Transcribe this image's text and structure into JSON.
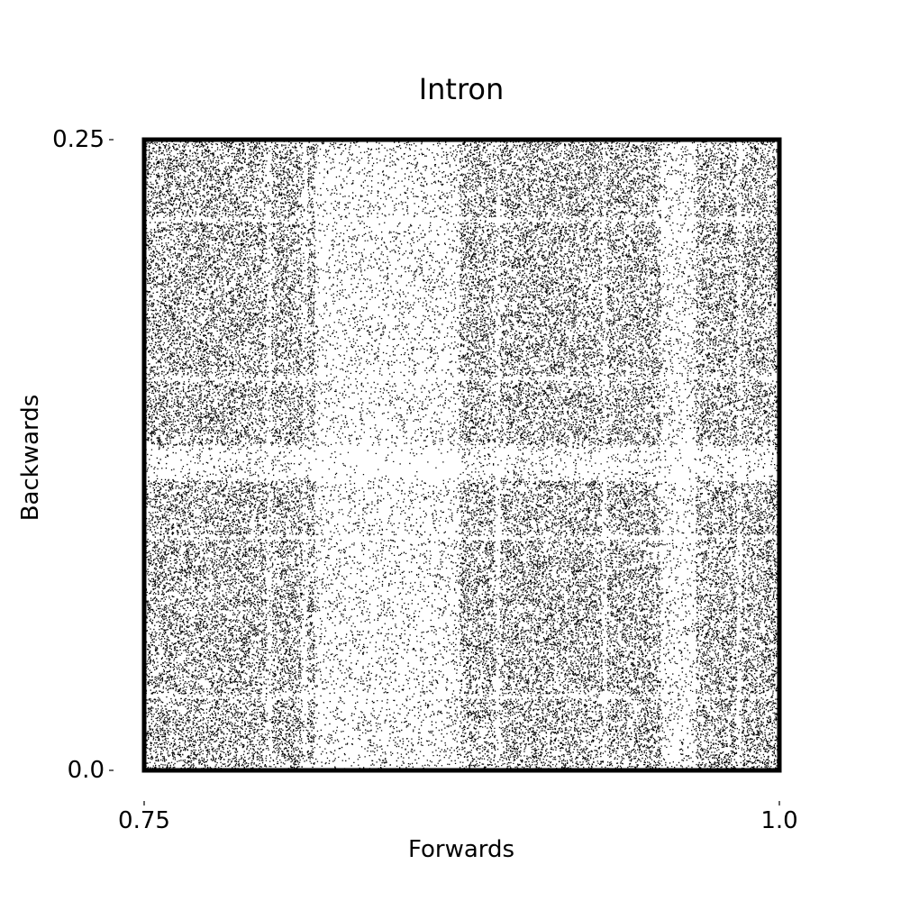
{
  "chart_data": {
    "type": "scatter",
    "title": "Intron",
    "xlabel": "Forwards",
    "ylabel": "Backwards",
    "xlim": [
      0.75,
      1.0
    ],
    "ylim": [
      0.0,
      0.25
    ],
    "xticks": [
      "0.75",
      "1.0"
    ],
    "yticks": [
      "0.25",
      "0.0"
    ],
    "grid": false,
    "marker_color": "#000000",
    "background_color": "#ffffff",
    "light_vertical_bands": [
      [
        0.798,
        0.8
      ],
      [
        0.812,
        0.814
      ],
      [
        0.817,
        0.842
      ],
      [
        0.842,
        0.874
      ],
      [
        0.888,
        0.89
      ],
      [
        0.93,
        0.932
      ],
      [
        0.953,
        0.967
      ],
      [
        0.983,
        0.985
      ]
    ],
    "light_horizontal_bands": [
      [
        0.2175,
        0.2195
      ],
      [
        0.1545,
        0.1565
      ],
      [
        0.115,
        0.129
      ],
      [
        0.0915,
        0.0935
      ],
      [
        0.0285,
        0.0305
      ]
    ]
  }
}
